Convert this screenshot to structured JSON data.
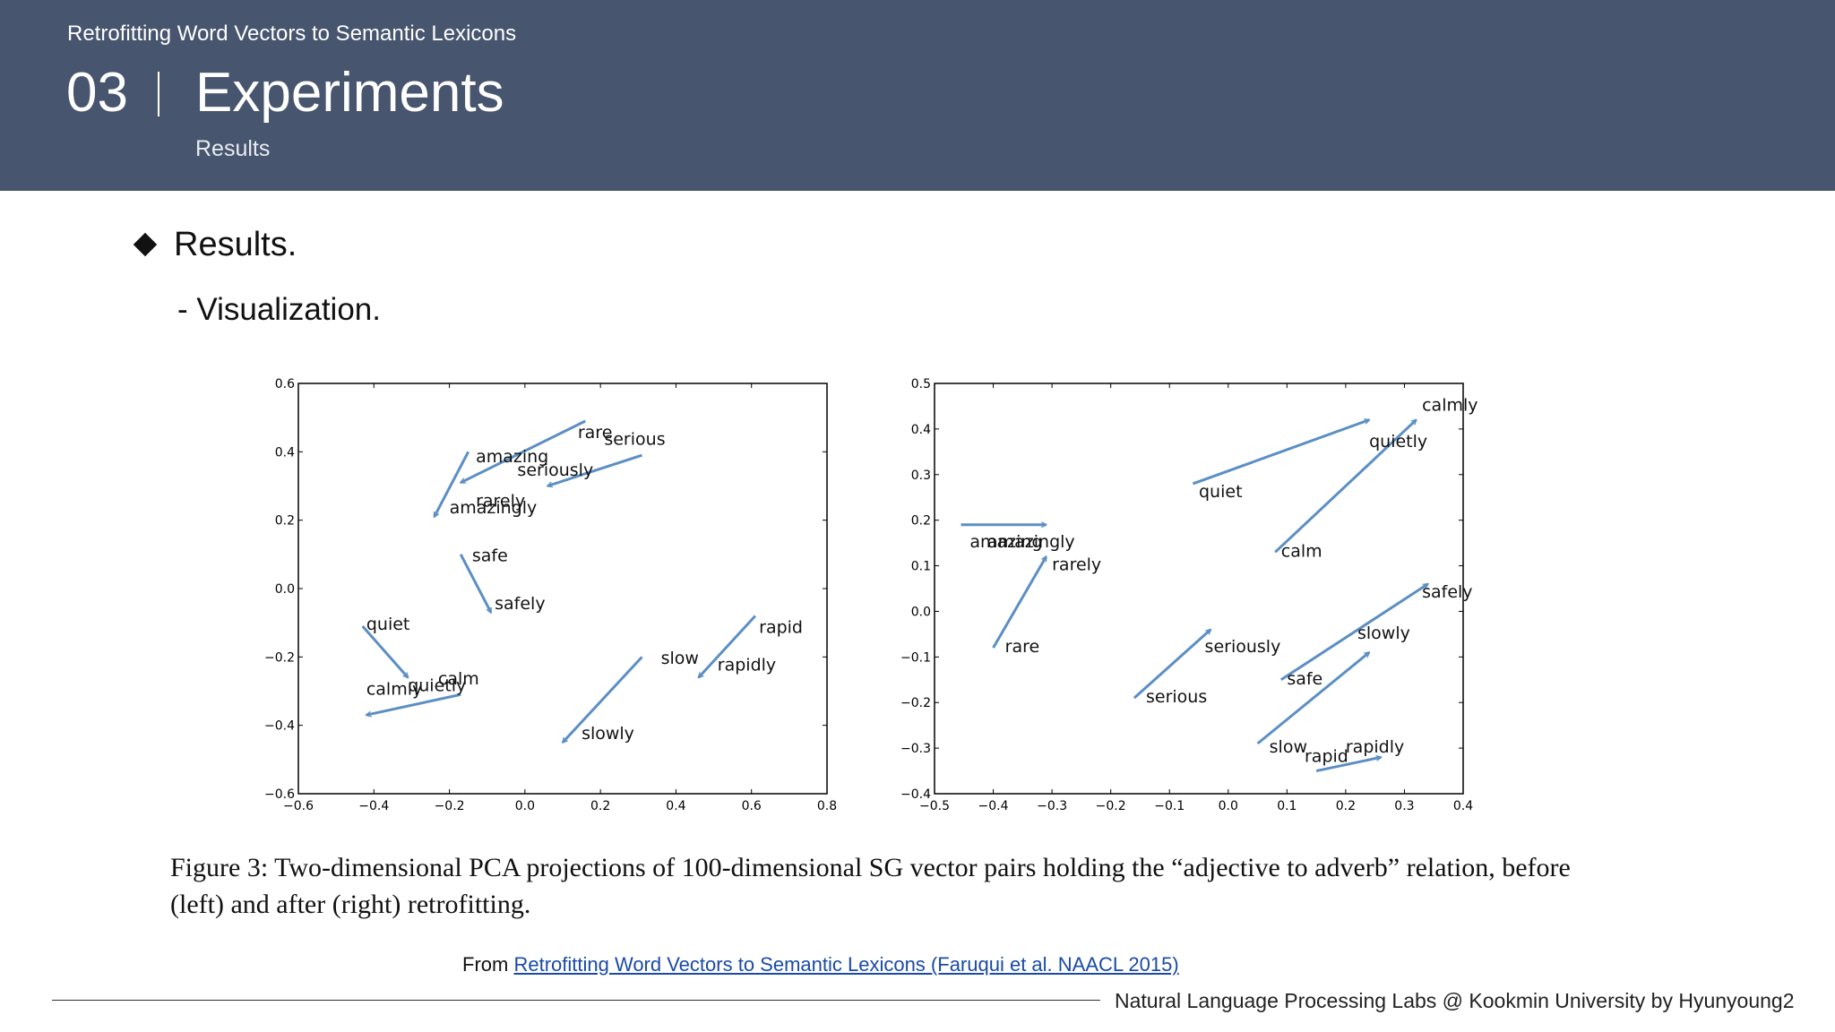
{
  "header": {
    "deck_title": "Retrofitting Word Vectors to Semantic Lexicons",
    "section_number": "03",
    "section_title": "Experiments",
    "section_subtitle": "Results"
  },
  "content": {
    "bullet": "Results.",
    "sub_bullet": "- Visualization."
  },
  "chart_data": [
    {
      "type": "scatter",
      "title": "",
      "xlabel": "",
      "ylabel": "",
      "xlim": [
        -0.6,
        0.8
      ],
      "ylim": [
        -0.6,
        0.6
      ],
      "xticks": [
        "-0.6",
        "-0.4",
        "-0.2",
        "0.0",
        "0.2",
        "0.4",
        "0.6",
        "0.8"
      ],
      "yticks": [
        "-0.6",
        "-0.4",
        "-0.2",
        "0.0",
        "0.2",
        "0.4",
        "0.6"
      ],
      "arrow_color": "#5b8fc4",
      "arrows": [
        {
          "from": [
            0.16,
            0.49
          ],
          "to": [
            -0.17,
            0.31
          ]
        },
        {
          "from": [
            0.31,
            0.39
          ],
          "to": [
            0.06,
            0.3
          ]
        },
        {
          "from": [
            -0.15,
            0.4
          ],
          "to": [
            -0.24,
            0.21
          ]
        },
        {
          "from": [
            -0.17,
            0.1
          ],
          "to": [
            -0.09,
            -0.07
          ]
        },
        {
          "from": [
            -0.43,
            -0.11
          ],
          "to": [
            -0.31,
            -0.26
          ]
        },
        {
          "from": [
            -0.17,
            -0.31
          ],
          "to": [
            -0.42,
            -0.37
          ]
        },
        {
          "from": [
            0.61,
            -0.08
          ],
          "to": [
            0.46,
            -0.26
          ]
        },
        {
          "from": [
            0.31,
            -0.2
          ],
          "to": [
            0.1,
            -0.45
          ]
        }
      ],
      "labels": [
        {
          "text": "rare",
          "x": 0.14,
          "y": 0.44
        },
        {
          "text": "serious",
          "x": 0.21,
          "y": 0.42
        },
        {
          "text": "amazing",
          "x": -0.13,
          "y": 0.37
        },
        {
          "text": "seriously",
          "x": -0.02,
          "y": 0.33
        },
        {
          "text": "rarely",
          "x": -0.13,
          "y": 0.24
        },
        {
          "text": "amazingly",
          "x": -0.2,
          "y": 0.22
        },
        {
          "text": "safe",
          "x": -0.14,
          "y": 0.08
        },
        {
          "text": "safely",
          "x": -0.08,
          "y": -0.06
        },
        {
          "text": "quiet",
          "x": -0.42,
          "y": -0.12
        },
        {
          "text": "calm",
          "x": -0.23,
          "y": -0.28
        },
        {
          "text": "quietly",
          "x": -0.31,
          "y": -0.3
        },
        {
          "text": "calmly",
          "x": -0.42,
          "y": -0.31
        },
        {
          "text": "rapid",
          "x": 0.62,
          "y": -0.13
        },
        {
          "text": "slow",
          "x": 0.36,
          "y": -0.22
        },
        {
          "text": "rapidly",
          "x": 0.51,
          "y": -0.24
        },
        {
          "text": "slowly",
          "x": 0.15,
          "y": -0.44
        }
      ]
    },
    {
      "type": "scatter",
      "title": "",
      "xlabel": "",
      "ylabel": "",
      "xlim": [
        -0.5,
        0.4
      ],
      "ylim": [
        -0.4,
        0.5
      ],
      "xticks": [
        "-0.5",
        "-0.4",
        "-0.3",
        "-0.2",
        "-0.1",
        "0.0",
        "0.1",
        "0.2",
        "0.3",
        "0.4"
      ],
      "yticks": [
        "-0.4",
        "-0.3",
        "-0.2",
        "-0.1",
        "0.0",
        "0.1",
        "0.2",
        "0.3",
        "0.4",
        "0.5"
      ],
      "arrow_color": "#5b8fc4",
      "arrows": [
        {
          "from": [
            -0.06,
            0.28
          ],
          "to": [
            0.24,
            0.42
          ]
        },
        {
          "from": [
            0.08,
            0.13
          ],
          "to": [
            0.32,
            0.42
          ]
        },
        {
          "from": [
            -0.455,
            0.19
          ],
          "to": [
            -0.31,
            0.19
          ]
        },
        {
          "from": [
            -0.4,
            -0.08
          ],
          "to": [
            -0.31,
            0.12
          ]
        },
        {
          "from": [
            -0.16,
            -0.19
          ],
          "to": [
            -0.03,
            -0.04
          ]
        },
        {
          "from": [
            0.09,
            -0.15
          ],
          "to": [
            0.34,
            0.06
          ]
        },
        {
          "from": [
            0.05,
            -0.29
          ],
          "to": [
            0.24,
            -0.09
          ]
        },
        {
          "from": [
            0.15,
            -0.35
          ],
          "to": [
            0.26,
            -0.32
          ]
        }
      ],
      "labels": [
        {
          "text": "calmly",
          "x": 0.33,
          "y": 0.44
        },
        {
          "text": "quietly",
          "x": 0.24,
          "y": 0.36
        },
        {
          "text": "quiet",
          "x": -0.05,
          "y": 0.25
        },
        {
          "text": "calm",
          "x": 0.09,
          "y": 0.12
        },
        {
          "text": "amazing",
          "x": -0.44,
          "y": 0.14
        },
        {
          "text": "amazingly",
          "x": -0.41,
          "y": 0.14
        },
        {
          "text": "rarely",
          "x": -0.3,
          "y": 0.09
        },
        {
          "text": "rare",
          "x": -0.38,
          "y": -0.09
        },
        {
          "text": "safely",
          "x": 0.33,
          "y": 0.03
        },
        {
          "text": "slowly",
          "x": 0.22,
          "y": -0.06
        },
        {
          "text": "seriously",
          "x": -0.04,
          "y": -0.09
        },
        {
          "text": "safe",
          "x": 0.1,
          "y": -0.16
        },
        {
          "text": "serious",
          "x": -0.14,
          "y": -0.2
        },
        {
          "text": "slow",
          "x": 0.07,
          "y": -0.31
        },
        {
          "text": "rapid",
          "x": 0.13,
          "y": -0.33
        },
        {
          "text": "rapidly",
          "x": 0.2,
          "y": -0.31
        }
      ]
    }
  ],
  "caption": "Figure 3: Two-dimensional PCA projections of 100-dimensional SG vector pairs holding the “adjective to adverb” relation, before (left) and after (right) retrofitting.",
  "source": {
    "prefix": "From",
    "link_text": "Retrofitting Word Vectors to Semantic Lexicons (Faruqui et al. NAACL 2015)"
  },
  "footer": {
    "text": "Natural Language Processing Labs @ Kookmin University by Hyunyoung2"
  }
}
